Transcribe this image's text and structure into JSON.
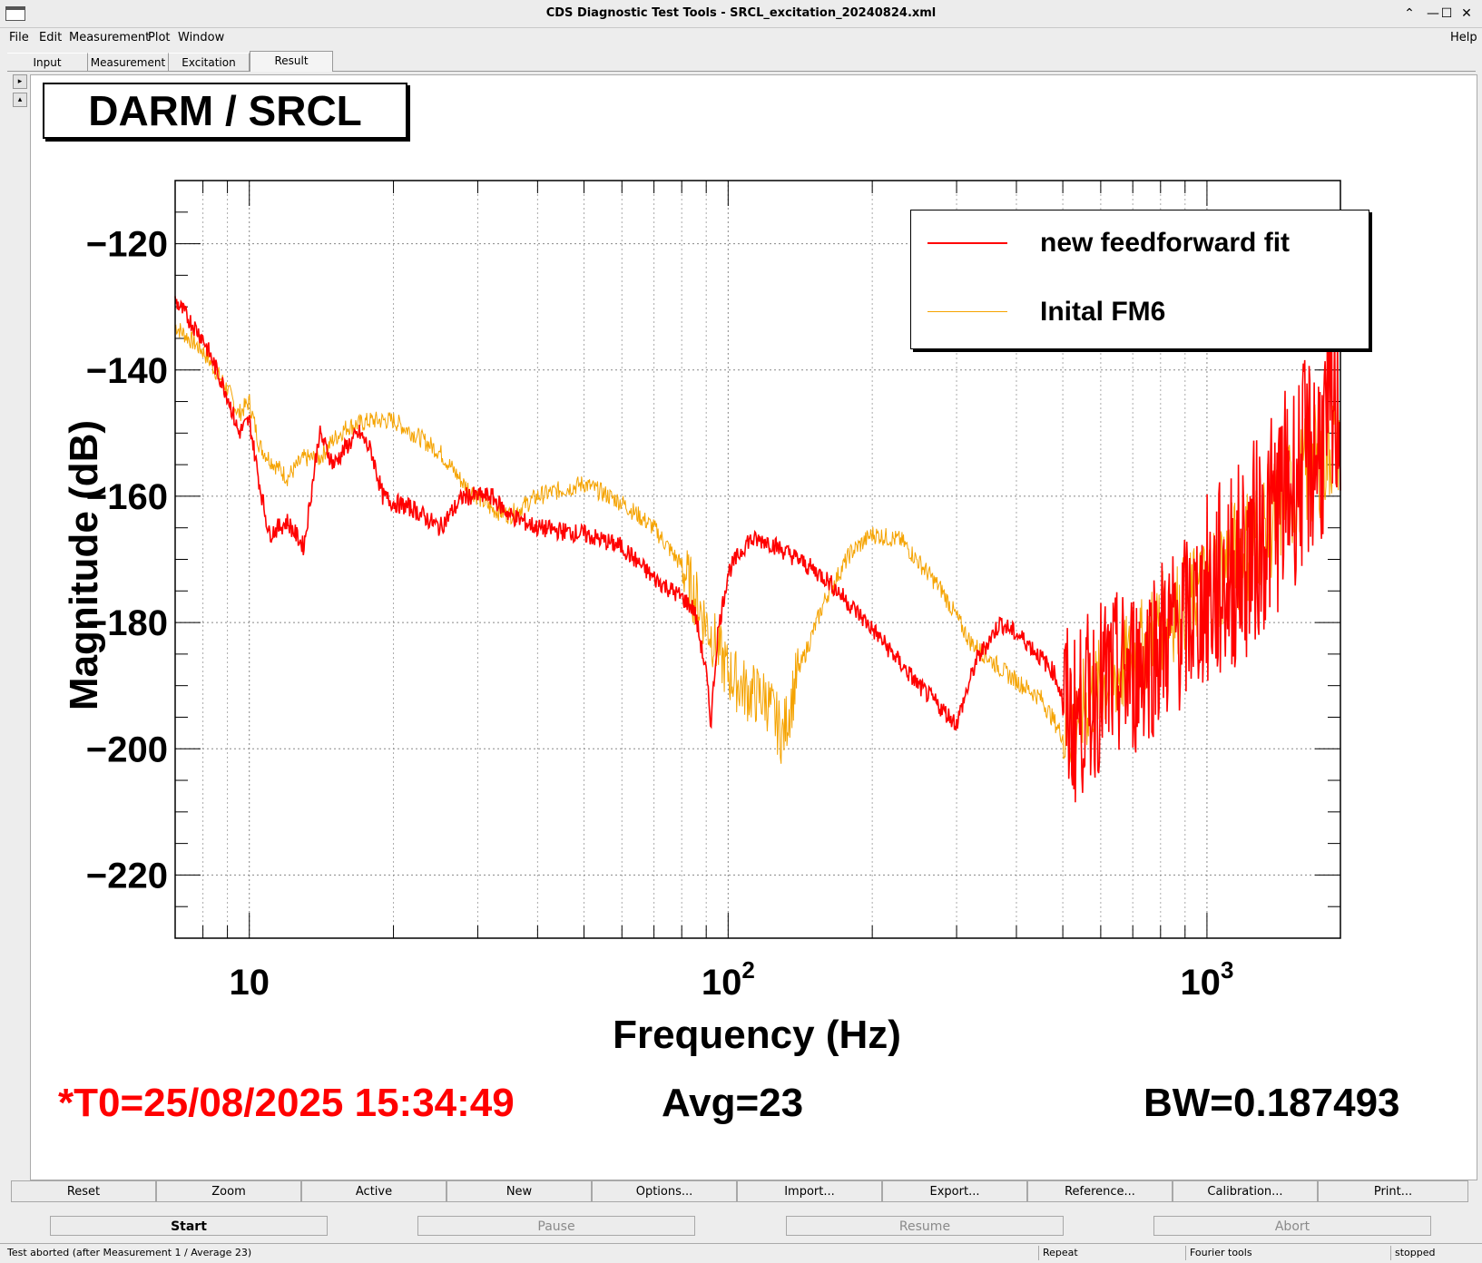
{
  "window": {
    "title": "CDS Diagnostic Test Tools - SRCL_excitation_20240824.xml",
    "buttons": [
      "⌃",
      "—",
      "☐",
      "✕"
    ]
  },
  "menu": {
    "file": "File",
    "edit": "Edit",
    "measurement": "Measurement",
    "plot": "Plot",
    "window": "Window",
    "help": "Help"
  },
  "tabs": [
    "Input",
    "Measurement",
    "Excitation",
    "Result"
  ],
  "plot": {
    "title_box": "DARM / SRCL",
    "t0": "*T0=25/08/2025 15:34:49",
    "avg": "Avg=23",
    "bw": "BW=0.187493"
  },
  "colors": {
    "series1": "#ff0000",
    "series2": "#f5a300",
    "t0_text": "#ff0000"
  },
  "chart_data": {
    "type": "line",
    "xlabel": "Frequency (Hz)",
    "ylabel": "Magnitude (dB)",
    "x_scale": "log",
    "xlim": [
      7,
      1900
    ],
    "ylim": [
      -230,
      -110
    ],
    "x_tick_labels": [
      "10",
      "10^2",
      "10^3"
    ],
    "y_tick_labels": [
      "−120",
      "−140",
      "−160",
      "−180",
      "−200",
      "−220"
    ],
    "y_ticks": [
      -120,
      -140,
      -160,
      -180,
      -200,
      -220
    ],
    "grid": true,
    "legend_position": "top-right",
    "series": [
      {
        "name": "new feedforward fit",
        "color": "#ff0000",
        "x": [
          7,
          8,
          9,
          9.5,
          10,
          10.5,
          11,
          12,
          13,
          14,
          15,
          16,
          17,
          18,
          19,
          20,
          22,
          25,
          28,
          32,
          35,
          40,
          50,
          60,
          70,
          80,
          85,
          90,
          92,
          95,
          100,
          110,
          120,
          140,
          160,
          200,
          250,
          300,
          330,
          370,
          420,
          480,
          520,
          600,
          700,
          800,
          900,
          1000,
          1200,
          1400,
          1600,
          1800,
          1900
        ],
        "y": [
          -129,
          -135,
          -144,
          -150,
          -148,
          -158,
          -166,
          -164,
          -168,
          -150,
          -155,
          -152,
          -150,
          -153,
          -160,
          -161,
          -162,
          -165,
          -160,
          -160,
          -163,
          -165,
          -166,
          -168,
          -173,
          -176,
          -178,
          -188,
          -196,
          -182,
          -172,
          -167,
          -167,
          -170,
          -173,
          -181,
          -190,
          -196,
          -186,
          -180,
          -183,
          -188,
          -196,
          -190,
          -188,
          -183,
          -180,
          -176,
          -170,
          -162,
          -155,
          -150,
          -145
        ]
      },
      {
        "name": "Inital FM6",
        "color": "#f5a300",
        "x": [
          7,
          8,
          9,
          9.5,
          10,
          10.5,
          11,
          12,
          13,
          14,
          15,
          16,
          18,
          20,
          22,
          25,
          28,
          32,
          35,
          40,
          50,
          60,
          70,
          80,
          90,
          100,
          110,
          120,
          130,
          140,
          160,
          180,
          200,
          230,
          280,
          320,
          380,
          450,
          500,
          520,
          600,
          700,
          800,
          900,
          1000,
          1200,
          1400,
          1600,
          1800,
          1900
        ],
        "y": [
          -133,
          -137,
          -143,
          -147,
          -145,
          -152,
          -154,
          -157,
          -154,
          -154,
          -151,
          -149,
          -148,
          -148,
          -150,
          -153,
          -158,
          -162,
          -163,
          -160,
          -158,
          -161,
          -165,
          -171,
          -180,
          -188,
          -191,
          -192,
          -198,
          -188,
          -176,
          -169,
          -166,
          -167,
          -175,
          -183,
          -188,
          -192,
          -198,
          -196,
          -190,
          -186,
          -180,
          -177,
          -174,
          -168,
          -163,
          -157,
          -152,
          -150
        ]
      }
    ]
  },
  "toolbar": [
    "Reset",
    "Zoom",
    "Active",
    "New",
    "Options...",
    "Import...",
    "Export...",
    "Reference...",
    "Calibration...",
    "Print..."
  ],
  "controls": [
    "Start",
    "Pause",
    "Resume",
    "Abort"
  ],
  "status": {
    "message": "Test aborted (after Measurement 1 / Average 23)",
    "mode": "Repeat",
    "tool": "Fourier tools",
    "state": "stopped"
  }
}
